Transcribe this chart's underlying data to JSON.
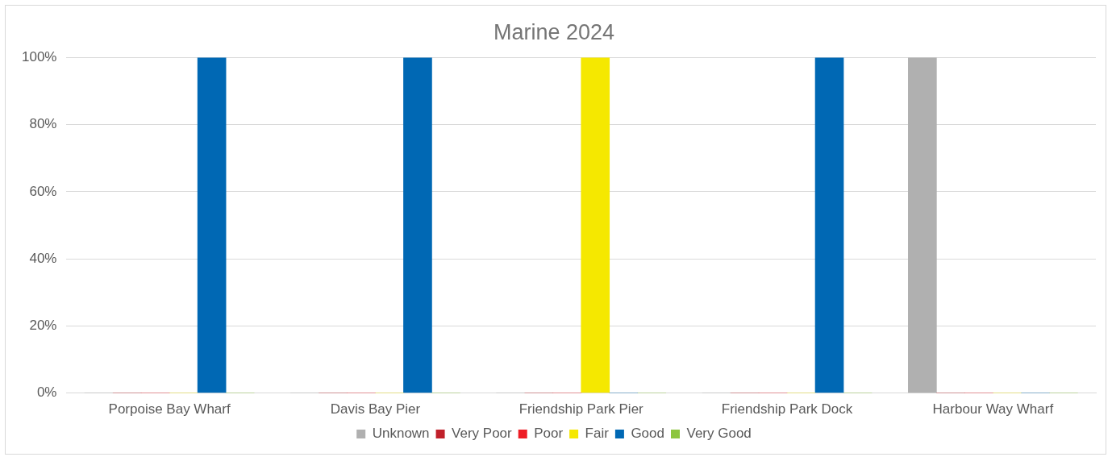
{
  "chart_data": {
    "type": "bar",
    "title": "Marine 2024",
    "categories": [
      "Porpoise Bay Wharf",
      "Davis Bay Pier",
      "Friendship Park Pier",
      "Friendship Park Dock",
      "Harbour Way Wharf"
    ],
    "series": [
      {
        "name": "Unknown",
        "color": "#b0b0b0",
        "values": [
          0,
          0,
          0,
          0,
          100
        ]
      },
      {
        "name": "Very Poor",
        "color": "#c0202a",
        "values": [
          0,
          0,
          0,
          0,
          0
        ]
      },
      {
        "name": "Poor",
        "color": "#ee1c25",
        "values": [
          0,
          0,
          0,
          0,
          0
        ]
      },
      {
        "name": "Fair",
        "color": "#f5e800",
        "values": [
          0,
          0,
          100,
          0,
          0
        ]
      },
      {
        "name": "Good",
        "color": "#0068b4",
        "values": [
          100,
          100,
          0,
          100,
          0
        ]
      },
      {
        "name": "Very Good",
        "color": "#8dc63f",
        "values": [
          0,
          0,
          0,
          0,
          0
        ]
      }
    ],
    "ylim": [
      0,
      100
    ],
    "yticks": [
      {
        "value": 0,
        "label": "0%"
      },
      {
        "value": 20,
        "label": "20%"
      },
      {
        "value": 40,
        "label": "40%"
      },
      {
        "value": 60,
        "label": "60%"
      },
      {
        "value": 80,
        "label": "80%"
      },
      {
        "value": 100,
        "label": "100%"
      }
    ],
    "grid": "y",
    "legend": "bottom"
  }
}
